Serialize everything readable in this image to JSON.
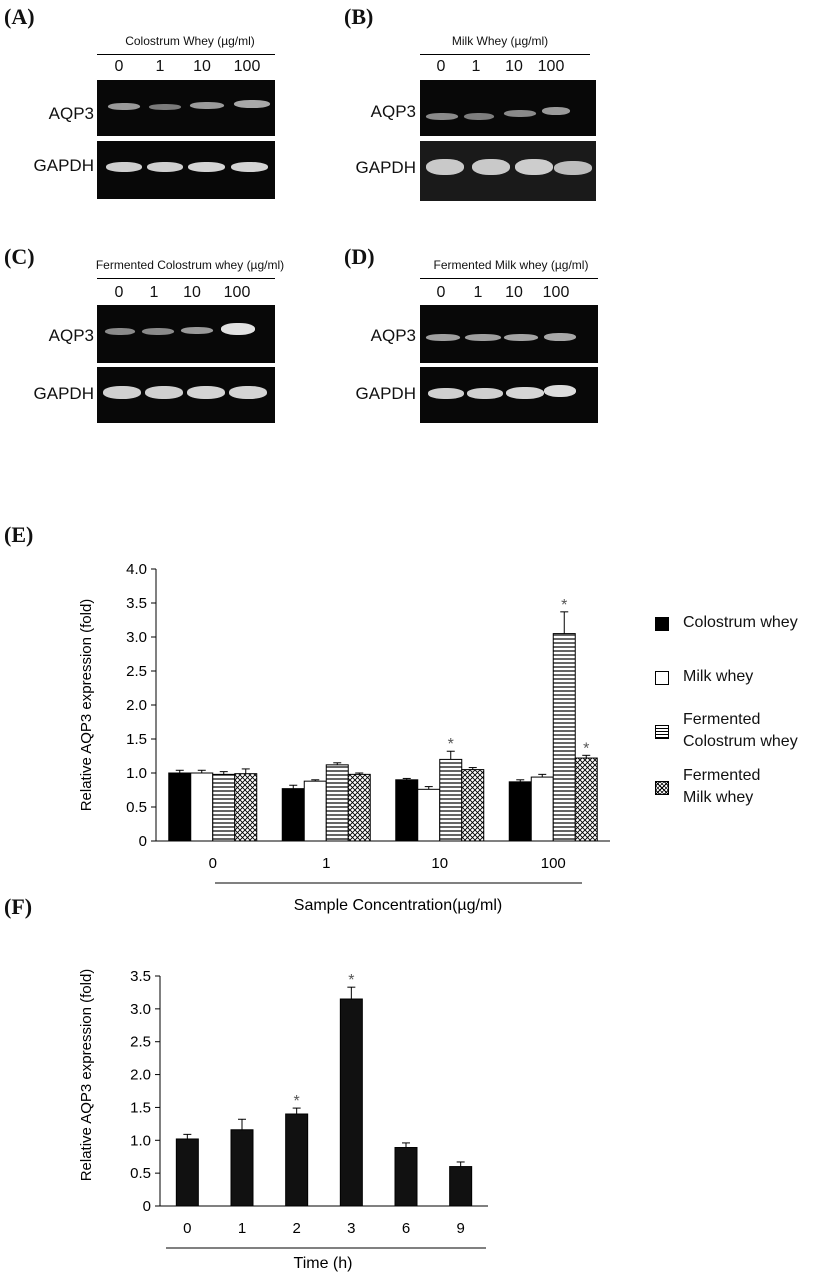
{
  "panel_labels": [
    "(A)",
    "(B)",
    "(C)",
    "(D)",
    "(E)",
    "(F)"
  ],
  "gels": [
    {
      "title": "Colostrum Whey (µg/ml)",
      "lanes": [
        "0",
        "1",
        "10",
        "100"
      ],
      "rows": [
        "AQP3",
        "GAPDH"
      ]
    },
    {
      "title": "Milk Whey (µg/ml)",
      "lanes": [
        "0",
        "1",
        "10",
        "100"
      ],
      "rows": [
        "AQP3",
        "GAPDH"
      ]
    },
    {
      "title": "Fermented Colostrum whey (µg/ml)",
      "lanes": [
        "0",
        "1",
        "10",
        "100"
      ],
      "rows": [
        "AQP3",
        "GAPDH"
      ]
    },
    {
      "title": "Fermented Milk whey (µg/ml)",
      "lanes": [
        "0",
        "1",
        "10",
        "100"
      ],
      "rows": [
        "AQP3",
        "GAPDH"
      ]
    }
  ],
  "chart_data": [
    {
      "type": "bar",
      "panel": "(E)",
      "ylabel": "Relative AQP3 expression (fold)",
      "xlabel": "Sample Concentration(µg/ml)",
      "categories": [
        "0",
        "1",
        "10",
        "100"
      ],
      "ylim": [
        0,
        4.0
      ],
      "yticks": [
        "0",
        "0.5",
        "1.0",
        "1.5",
        "2.0",
        "2.5",
        "3.0",
        "3.5",
        "4.0"
      ],
      "legend_position": "right",
      "significance_marker": "*",
      "series": [
        {
          "name": "Colostrum whey",
          "pattern": "solid-black",
          "values": [
            1.0,
            0.77,
            0.9,
            0.87
          ],
          "errors": [
            0.04,
            0.05,
            0.02,
            0.03
          ],
          "significant": [
            false,
            false,
            false,
            false
          ]
        },
        {
          "name": "Milk whey",
          "pattern": "white",
          "values": [
            1.0,
            0.88,
            0.76,
            0.94
          ],
          "errors": [
            0.04,
            0.02,
            0.04,
            0.04
          ],
          "significant": [
            false,
            false,
            false,
            false
          ]
        },
        {
          "name": "Fermented\nColostrum whey",
          "pattern": "horizontal-lines",
          "values": [
            0.98,
            1.12,
            1.2,
            3.05
          ],
          "errors": [
            0.04,
            0.03,
            0.12,
            0.32
          ],
          "significant": [
            false,
            false,
            true,
            true
          ]
        },
        {
          "name": "Fermented\nMilk whey",
          "pattern": "crosshatch",
          "values": [
            0.99,
            0.98,
            1.05,
            1.22
          ],
          "errors": [
            0.07,
            0.02,
            0.03,
            0.04
          ],
          "significant": [
            false,
            false,
            false,
            true
          ]
        }
      ]
    },
    {
      "type": "bar",
      "panel": "(F)",
      "ylabel": "Relative AQP3 expression (fold)",
      "xlabel": "Time (h)",
      "categories": [
        "0",
        "1",
        "2",
        "3",
        "6",
        "9"
      ],
      "ylim": [
        0,
        3.5
      ],
      "yticks": [
        "0",
        "0.5",
        "1.0",
        "1.5",
        "2.0",
        "2.5",
        "3.0",
        "3.5"
      ],
      "significance_marker": "*",
      "series": [
        {
          "values": [
            1.02,
            1.16,
            1.4,
            3.15,
            0.89,
            0.6
          ],
          "errors": [
            0.07,
            0.16,
            0.09,
            0.18,
            0.07,
            0.07
          ],
          "significant": [
            false,
            false,
            true,
            true,
            false,
            false
          ]
        }
      ]
    }
  ]
}
